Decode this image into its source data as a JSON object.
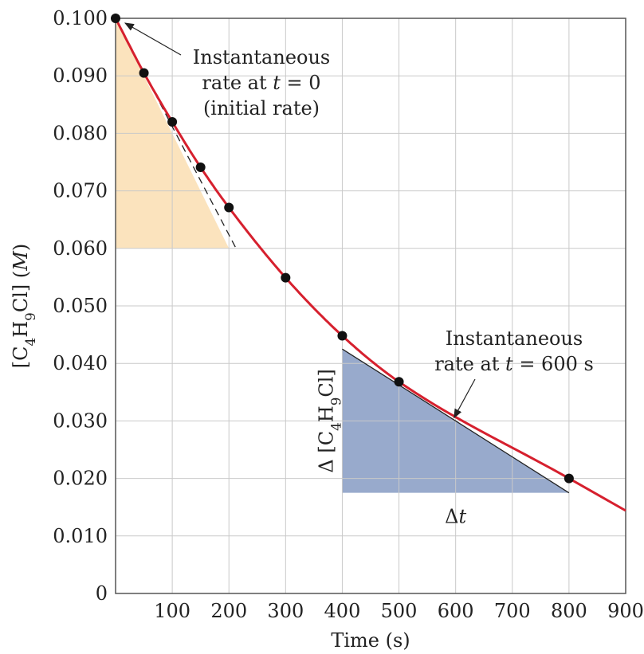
{
  "chart_data": {
    "type": "scatter",
    "title": "",
    "xlabel": "Time (s)",
    "ylabel": "[C4H9Cl] (M)",
    "xlim": [
      0,
      900
    ],
    "ylim": [
      0,
      0.1
    ],
    "x_ticks": [
      100,
      200,
      300,
      400,
      500,
      600,
      700,
      800,
      900
    ],
    "x_tick_labels": [
      "100",
      "200",
      "300",
      "400",
      "500",
      "600",
      "700",
      "800",
      "900"
    ],
    "y_ticks": [
      0,
      0.01,
      0.02,
      0.03,
      0.04,
      0.05,
      0.06,
      0.07,
      0.08,
      0.09,
      0.1
    ],
    "y_tick_labels": [
      "0",
      "0.010",
      "0.020",
      "0.030",
      "0.040",
      "0.050",
      "0.060",
      "0.070",
      "0.080",
      "0.090",
      "0.100"
    ],
    "grid": true,
    "series": [
      {
        "x": [
          0,
          50,
          100,
          150,
          200,
          300,
          400,
          500,
          800
        ],
        "y": [
          0.1,
          0.0905,
          0.082,
          0.0741,
          0.0671,
          0.0549,
          0.0448,
          0.0368,
          0.02
        ],
        "color": "#111111"
      }
    ],
    "fit_curve": {
      "color": "#d6202e",
      "x_range": [
        0,
        900
      ]
    },
    "initial_tangent": {
      "x": [
        0,
        200
      ],
      "y": [
        0.1,
        0.06
      ],
      "fill_color": "#fbe3bd",
      "label": [
        "Instantaneous",
        "rate at t = 0",
        "(initial rate)"
      ],
      "arrow_target": [
        0,
        0.1
      ]
    },
    "tangent_600": {
      "x": [
        400,
        800
      ],
      "y": [
        0.0425,
        0.0175
      ],
      "fill_color": "#98aacc",
      "label": [
        "Instantaneous",
        "rate at t = 600 s"
      ],
      "arrow_target": [
        600,
        0.03
      ],
      "delta_y_label": "Δ [C4H9Cl]",
      "delta_x_label": "Δt"
    }
  }
}
